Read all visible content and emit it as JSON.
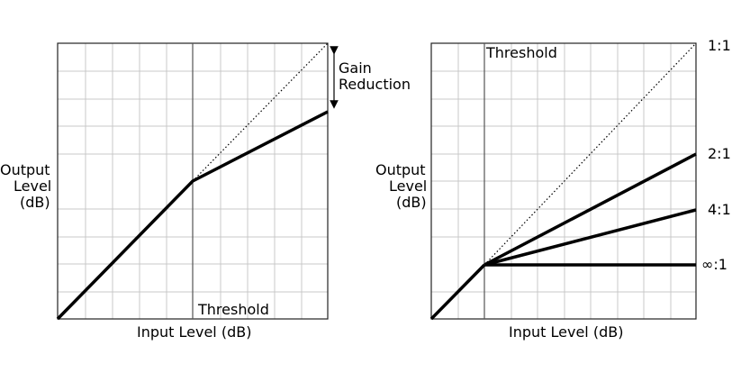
{
  "left": {
    "ylabel_lines": [
      "Output",
      "Level",
      "(dB)"
    ],
    "xlabel": "Input Level (dB)",
    "threshold_label": "Threshold",
    "gain_reduction_lines": [
      "Gain",
      "Reduction"
    ]
  },
  "right": {
    "ylabel_lines": [
      "Output",
      "Level",
      "(dB)"
    ],
    "xlabel": "Input Level (dB)",
    "threshold_label": "Threshold",
    "ratio_labels": [
      "1:1",
      "2:1",
      "4:1",
      "∞:1"
    ]
  }
}
